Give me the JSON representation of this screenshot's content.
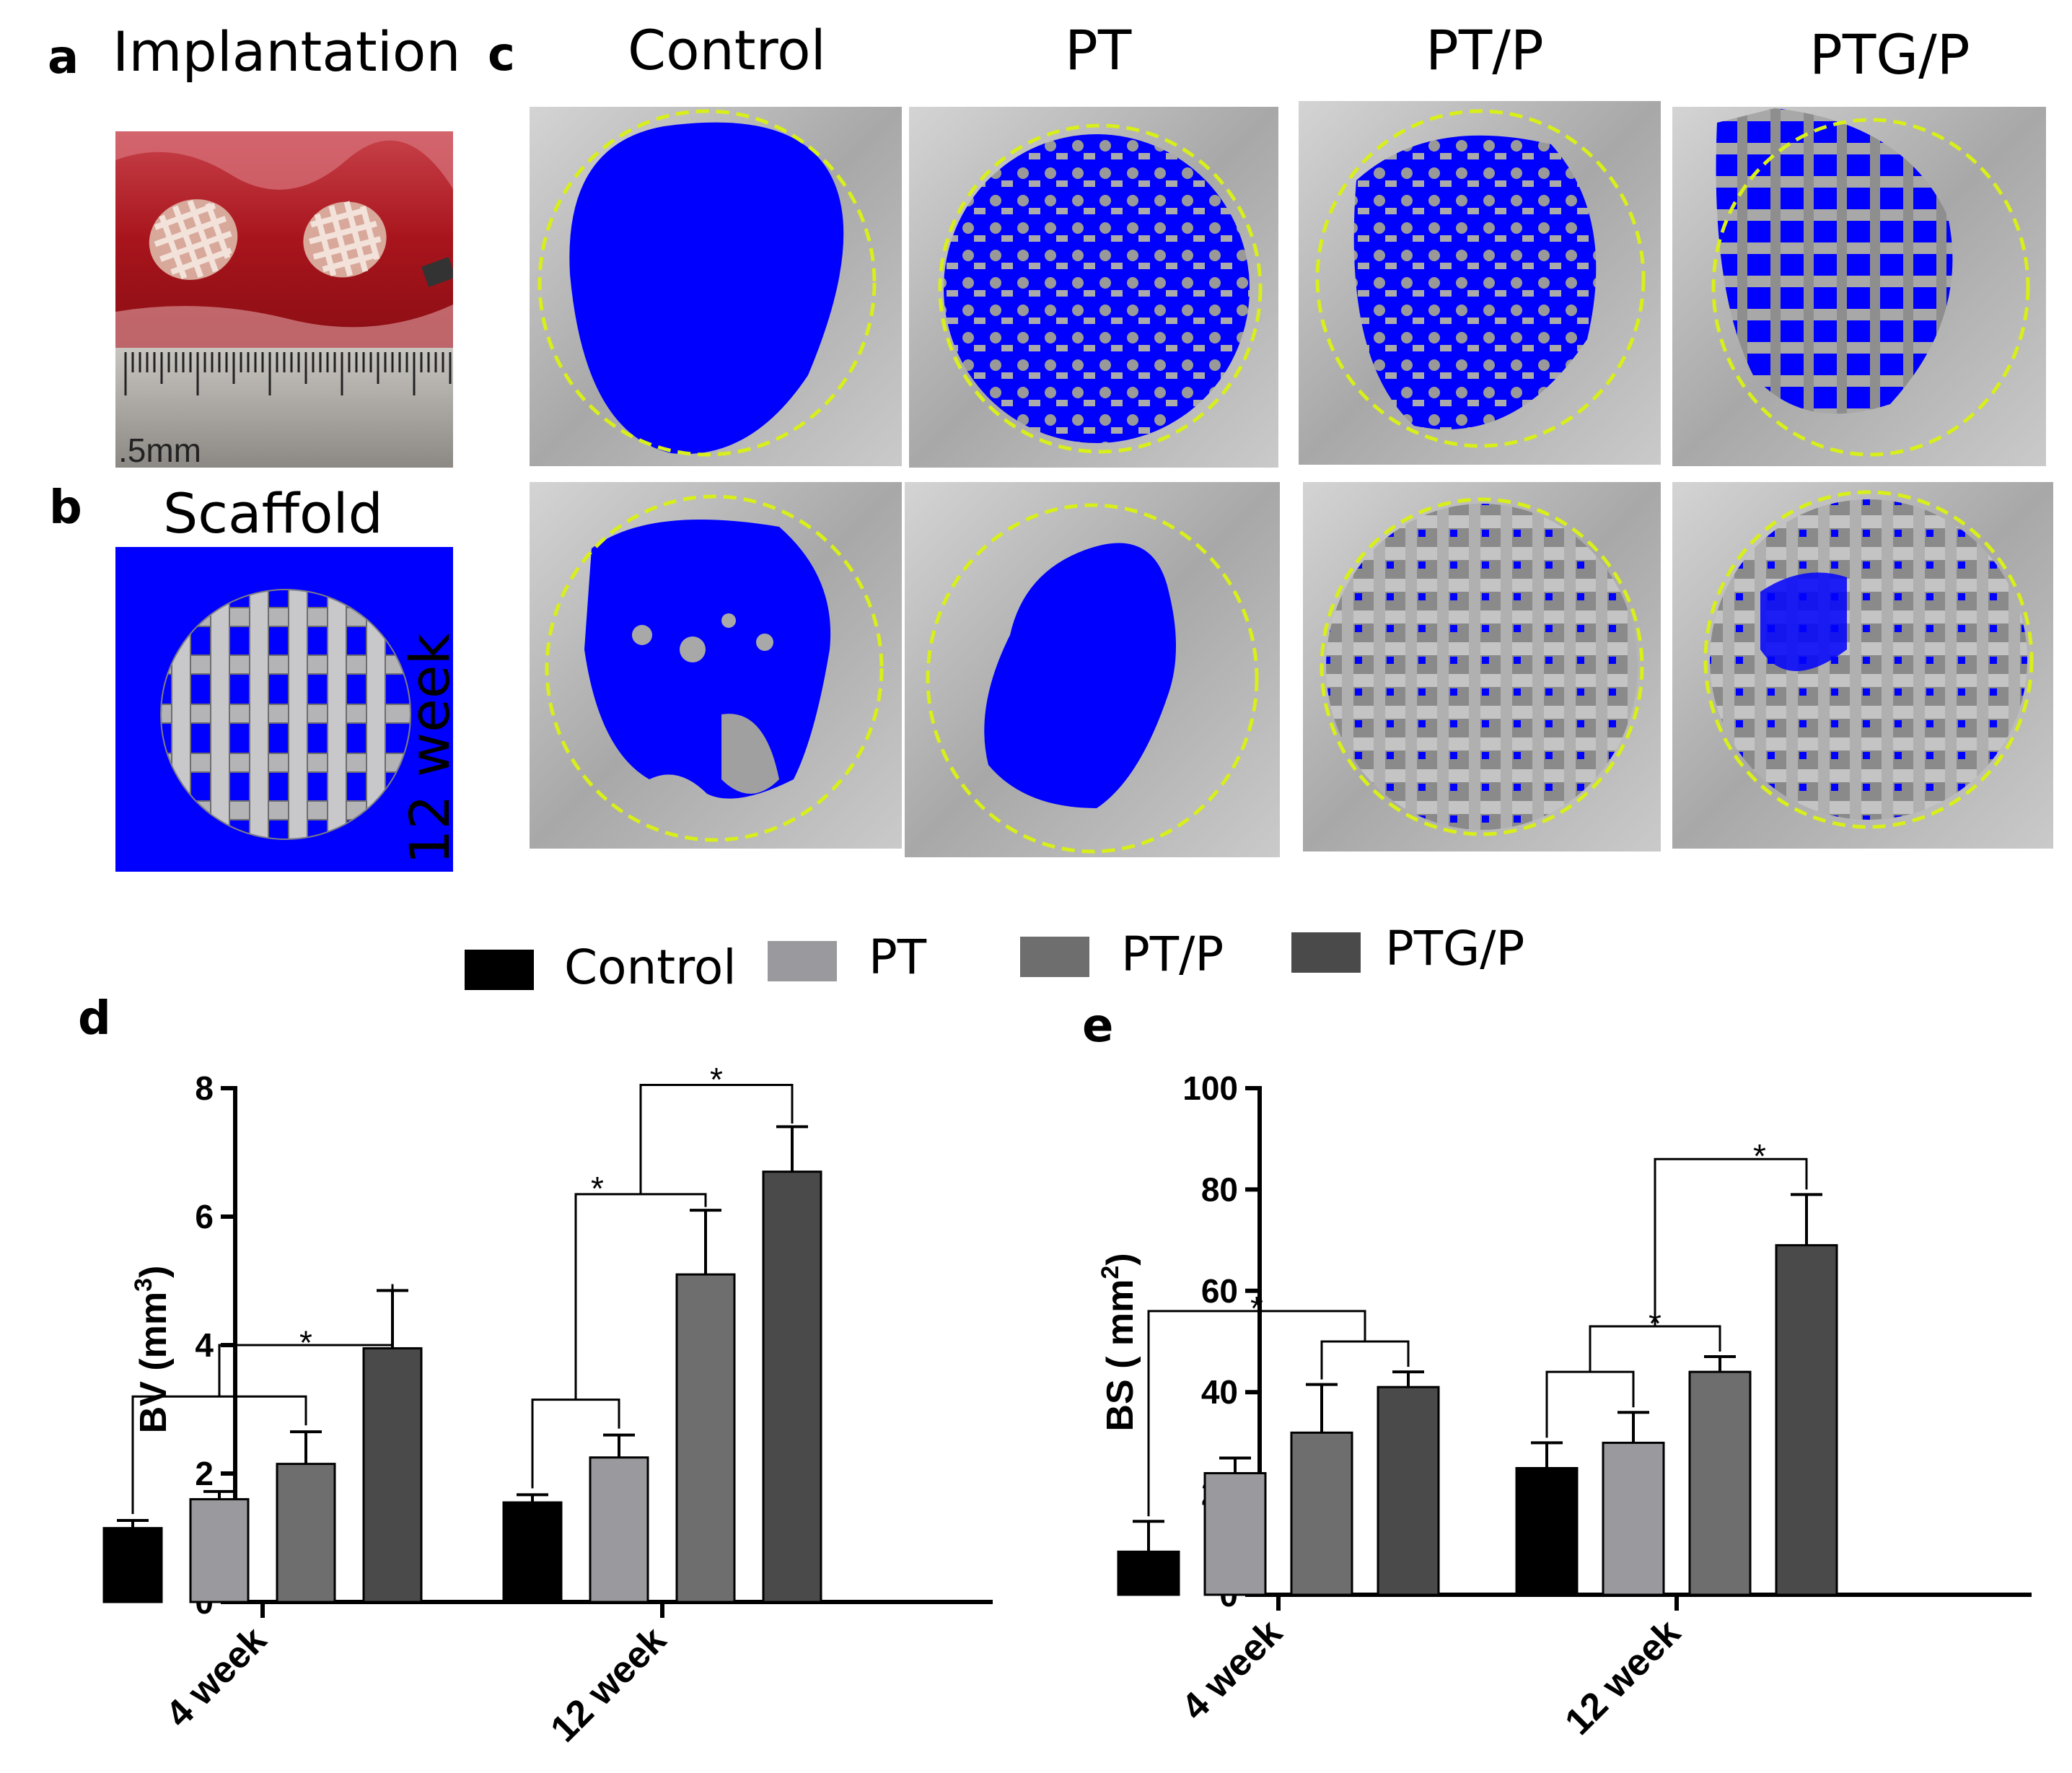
{
  "panels": {
    "a": {
      "letter": "a",
      "title": "Implantation",
      "ruler_label": ".5mm"
    },
    "b": {
      "letter": "b",
      "title": "Scaffold"
    },
    "c": {
      "letter": "c",
      "columns": [
        "Control",
        "PT",
        "PT/P",
        "PTG/P"
      ],
      "row_label": "12 week"
    },
    "d": {
      "letter": "d"
    },
    "e": {
      "letter": "e"
    }
  },
  "legend": [
    {
      "label": "Control",
      "color": "#000000"
    },
    {
      "label": "PT",
      "color": "#9a9a9e"
    },
    {
      "label": "PT/P",
      "color": "#6e6e6e"
    },
    {
      "label": "PTG/P",
      "color": "#4a4a4a"
    }
  ],
  "colors": {
    "highlight_blue": "#0000ff",
    "circle_yellow": "#d8ef1a",
    "gray_bg": "#b8b8b8"
  },
  "chart_data": [
    {
      "type": "bar",
      "title": "",
      "xlabel": "",
      "ylabel": "BV (mm3)",
      "ylim": [
        0,
        8
      ],
      "yticks": [
        0,
        2,
        4,
        6,
        8
      ],
      "categories": [
        "4 week",
        "12 week"
      ],
      "series": [
        {
          "name": "Control",
          "values": [
            1.15,
            1.55
          ],
          "errors": [
            0.12,
            0.12
          ]
        },
        {
          "name": "PT",
          "values": [
            1.6,
            2.25
          ],
          "errors": [
            0.12,
            0.35
          ]
        },
        {
          "name": "PT/P",
          "values": [
            2.15,
            5.1
          ],
          "errors": [
            0.5,
            1.0
          ]
        },
        {
          "name": "PTG/P",
          "values": [
            3.95,
            6.7
          ],
          "errors": [
            0.9,
            0.7
          ]
        }
      ],
      "significance_marker": "*"
    },
    {
      "type": "bar",
      "title": "",
      "xlabel": "",
      "ylabel": "BS ( mm2)",
      "ylim": [
        0,
        100
      ],
      "yticks": [
        0,
        20,
        40,
        60,
        80,
        100
      ],
      "categories": [
        "4 week",
        "12 week"
      ],
      "series": [
        {
          "name": "Control",
          "values": [
            8.5,
            25
          ],
          "errors": [
            6,
            5
          ]
        },
        {
          "name": "PT",
          "values": [
            24,
            30
          ],
          "errors": [
            3,
            6
          ]
        },
        {
          "name": "PT/P",
          "values": [
            32,
            44
          ],
          "errors": [
            9.5,
            3
          ]
        },
        {
          "name": "PTG/P",
          "values": [
            41,
            69
          ],
          "errors": [
            3,
            10
          ]
        }
      ],
      "significance_marker": "*"
    }
  ]
}
